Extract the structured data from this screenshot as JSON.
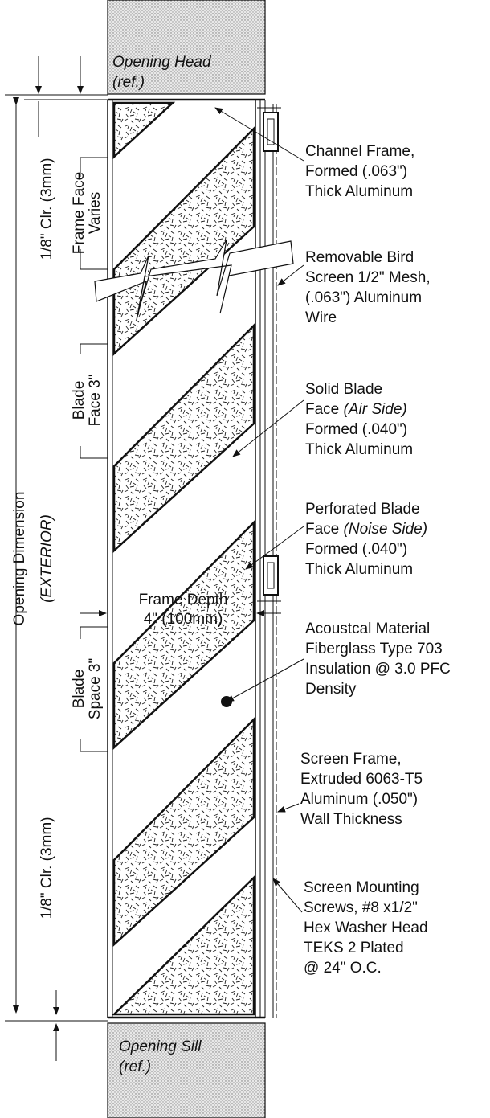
{
  "opening": {
    "head": [
      "Opening Head",
      "(ref.)"
    ],
    "sill": [
      "Opening Sill",
      "(ref.)"
    ]
  },
  "dimensions": {
    "opening": "Opening Dimension",
    "exterior": "(EXTERIOR)",
    "clearance_top": "1/8\" Clr. (3mm)",
    "clearance_bottom": "1/8\" Clr. (3mm)",
    "frame_face": [
      "Frame Face",
      "Varies"
    ],
    "blade_face": [
      "Blade",
      "Face 3\""
    ],
    "blade_space": [
      "Blade",
      "Space 3\""
    ],
    "frame_depth": [
      "Frame Depth",
      "4\" (100mm)"
    ]
  },
  "callouts": [
    {
      "id": "channel-frame",
      "lines": [
        "Channel Frame,",
        "Formed (.063\")",
        "Thick Aluminum"
      ]
    },
    {
      "id": "bird-screen",
      "lines": [
        "Removable Bird",
        "Screen 1/2\" Mesh,",
        "(.063\") Aluminum",
        "Wire"
      ]
    },
    {
      "id": "solid-blade",
      "lines": [
        "Solid Blade",
        "Face ",
        "(Air Side)",
        "Formed (.040\")",
        "Thick Aluminum"
      ]
    },
    {
      "id": "perforated-blade",
      "lines": [
        "Perforated Blade",
        "Face ",
        "(Noise Side)",
        "Formed (.040\")",
        "Thick Aluminum"
      ]
    },
    {
      "id": "acoustical-material",
      "lines": [
        "Acoustcal Material",
        "Fiberglass Type 703",
        "Insulation @ 3.0 PFC",
        "Density"
      ]
    },
    {
      "id": "screen-frame",
      "lines": [
        "Screen Frame,",
        "Extruded 6063-T5",
        "Aluminum (.050\")",
        "Wall Thickness"
      ]
    },
    {
      "id": "screen-screws",
      "lines": [
        "Screen Mounting",
        "Screws, #8 x1/2\"",
        "Hex Washer Head",
        "TEKS 2 Plated",
        "@ 24\" O.C."
      ]
    }
  ]
}
